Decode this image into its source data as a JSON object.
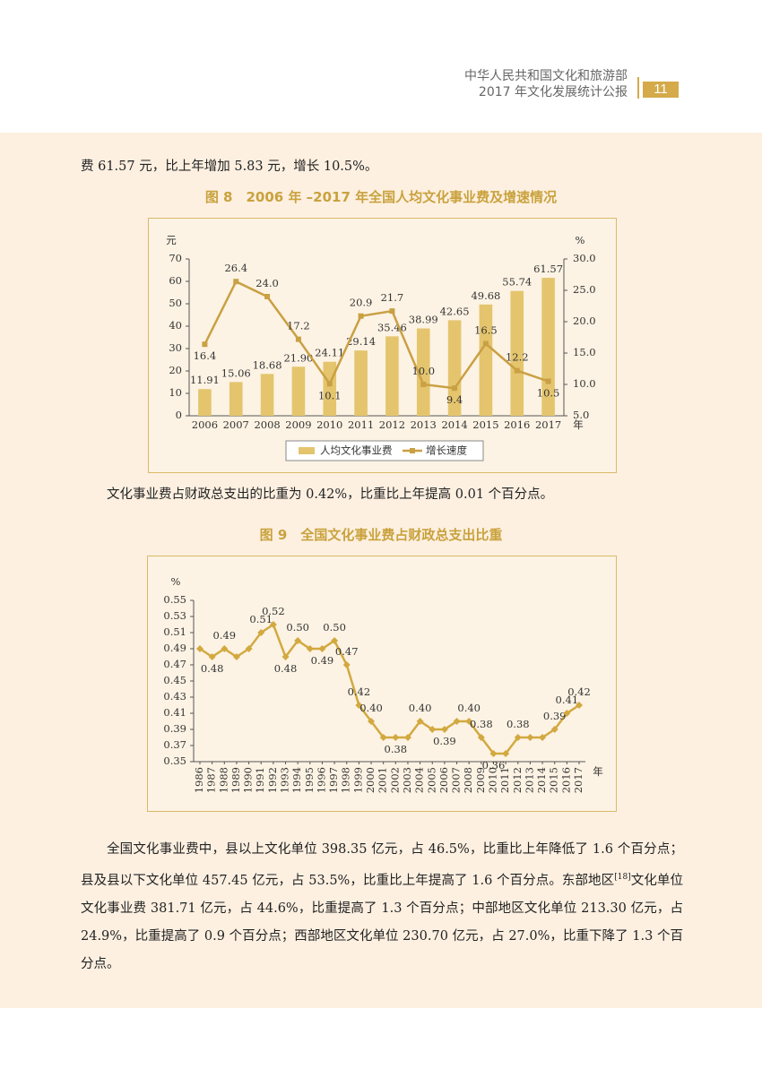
{
  "header": {
    "org": "中华人民共和国文化和旅游部",
    "report": "2017 年文化发展统计公报",
    "page": "11"
  },
  "paragraph1": "费 61.57 元，比上年增加 5.83 元，增长 10.5%。",
  "paragraph2": "文化事业费占财政总支出的比重为 0.42%，比重比上年提高 0.01 个百分点。",
  "paragraph3": {
    "before": "全国文化事业费中，县以上文化单位 398.35 亿元，占 46.5%，比重比上年降低了 1.6 个百分点；县及县以下文化单位 457.45 亿元，占 53.5%，比重比上年提高了 1.6 个百分点。东部地区",
    "note": "[18]",
    "after": "文化单位文化事业费 381.71 亿元，占 44.6%，比重提高了 1.3 个百分点；中部地区文化单位 213.30 亿元，占 24.9%，比重提高了 0.9 个百分点；西部地区文化单位 230.70 亿元，占 27.0%，比重下降了 1.3 个百分点。"
  },
  "chart_data": [
    {
      "type": "bar",
      "title": "图 8　2006 年 –2017 年全国人均文化事业费及增速情况",
      "y_label": "元",
      "y2_label": "%",
      "x_label": "年",
      "categories": [
        "2006",
        "2007",
        "2008",
        "2009",
        "2010",
        "2011",
        "2012",
        "2013",
        "2014",
        "2015",
        "2016",
        "2017"
      ],
      "series": [
        {
          "name": "人均文化事业费",
          "color": "#e4c56e",
          "values": [
            11.91,
            15.06,
            18.68,
            21.9,
            24.11,
            29.14,
            35.46,
            38.99,
            42.65,
            49.68,
            55.74,
            61.57
          ],
          "value_labels": [
            "11.91",
            "15.06",
            "18.68",
            "21.90",
            "24.11",
            "29.14",
            "35.46",
            "38.99",
            "42.65",
            "49.68",
            "55.74",
            "61.57"
          ]
        },
        {
          "name": "增长速度",
          "color": "#c9a043",
          "axis": "y2",
          "values": [
            16.4,
            26.4,
            24,
            17.2,
            10.1,
            20.9,
            21.7,
            10,
            9.4,
            16.5,
            12.2,
            10.5
          ],
          "value_labels": [
            "16.4",
            "26.4",
            "24.0",
            "17.2",
            "10.1",
            "20.9",
            "21.7",
            "10.0",
            "9.4",
            "16.5",
            "12.2",
            "10.5"
          ]
        }
      ],
      "ylim": [
        0,
        70
      ],
      "yticks": [
        0,
        10,
        20,
        30,
        40,
        50,
        60,
        70
      ],
      "y2lim": [
        5,
        30
      ],
      "y2ticks": [
        {
          "value": 5,
          "label": "5.0"
        },
        {
          "value": 10,
          "label": "10.0"
        },
        {
          "value": 15,
          "label": "15.0"
        },
        {
          "value": 20,
          "label": "20.0"
        },
        {
          "value": 25,
          "label": "25.0"
        },
        {
          "value": 30,
          "label": "30.0"
        }
      ],
      "legend": "bottom"
    },
    {
      "type": "line",
      "title": "图 9　全国文化事业费占财政总支出比重",
      "y_label": "%",
      "x_label": "年",
      "categories": [
        "1986",
        "1987",
        "1988",
        "1989",
        "1990",
        "1991",
        "1992",
        "1993",
        "1994",
        "1995",
        "1996",
        "1997",
        "1998",
        "1999",
        "2000",
        "2001",
        "2002",
        "2003",
        "2004",
        "2005",
        "2006",
        "2007",
        "2008",
        "2009",
        "2010",
        "2011",
        "2012",
        "2013",
        "2014",
        "2015",
        "2016",
        "2017"
      ],
      "series": [
        {
          "color": "#d2a940",
          "values": [
            0.49,
            0.48,
            0.49,
            0.48,
            0.49,
            0.51,
            0.52,
            0.48,
            0.5,
            0.49,
            0.49,
            0.5,
            0.47,
            0.42,
            0.4,
            0.38,
            0.38,
            0.38,
            0.4,
            0.39,
            0.39,
            0.4,
            0.4,
            0.38,
            0.36,
            0.36,
            0.38,
            0.38,
            0.38,
            0.39,
            0.41,
            0.42
          ],
          "value_labels": [
            null,
            "0.48",
            "0.49",
            null,
            null,
            "0.51",
            "0.52",
            "0.48",
            "0.50",
            null,
            "0.49",
            "0.50",
            "0.47",
            "0.42",
            "0.40",
            null,
            "0.38",
            null,
            "0.40",
            null,
            "0.39",
            null,
            "0.40",
            "0.38",
            "0.36",
            null,
            "0.38",
            null,
            null,
            "0.39",
            "0.41",
            "0.42"
          ]
        }
      ],
      "ylim": [
        0.35,
        0.55
      ],
      "yticks": [
        0.35,
        0.37,
        0.39,
        0.41,
        0.43,
        0.45,
        0.47,
        0.49,
        0.51,
        0.53,
        0.55
      ]
    }
  ]
}
